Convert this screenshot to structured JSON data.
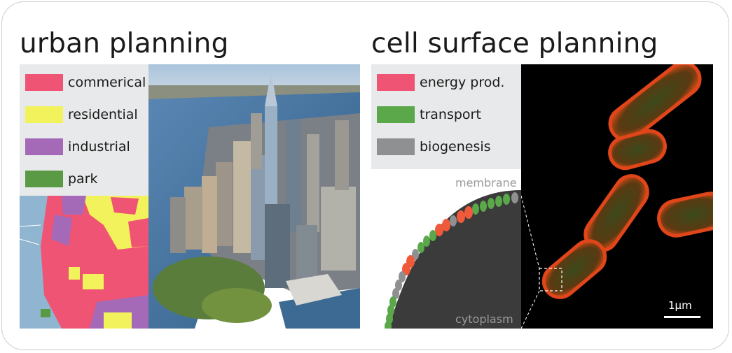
{
  "left_panel": {
    "title": "urban planning",
    "legend": [
      {
        "label": "commerical",
        "color": "#ef5474"
      },
      {
        "label": "residential",
        "color": "#f2f25c"
      },
      {
        "label": "industrial",
        "color": "#a46ab8"
      },
      {
        "label": "park",
        "color": "#5a9a45"
      }
    ]
  },
  "right_panel": {
    "title": "cell surface planning",
    "legend": [
      {
        "label": "energy prod.",
        "color": "#ef5474"
      },
      {
        "label": "transport",
        "color": "#5aa84a"
      },
      {
        "label": "biogenesis",
        "color": "#8f9092"
      }
    ],
    "membrane_label": "membrane",
    "cytoplasm_label": "cytoplasm",
    "scale_bar_label": "1μm"
  }
}
